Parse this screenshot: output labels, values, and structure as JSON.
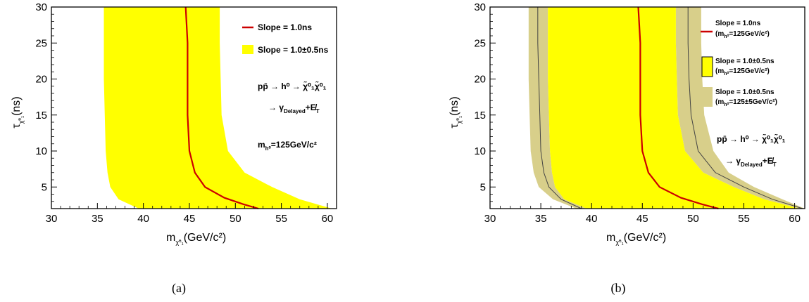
{
  "chart_data": [
    {
      "type": "area",
      "panel": "(a)",
      "xlim": [
        30,
        61
      ],
      "ylim": [
        2,
        30
      ],
      "xticks": [
        30,
        35,
        40,
        45,
        50,
        55,
        60
      ],
      "yticks": [
        5,
        10,
        15,
        20,
        25,
        30
      ],
      "ylabel_main": "τ",
      "ylabel_sub": "χ̃⁰₁",
      "ylabel_tail": "(ns)",
      "xlabel_main": "m",
      "xlabel_sub": "χ̃⁰₁",
      "xlabel_tail": "(GeV/c²)",
      "series": [
        {
          "name": "Slope = 1.0ns",
          "kind": "line",
          "color": "#cc0000",
          "x": [
            44.6,
            44.8,
            44.8,
            44.8,
            45.0,
            45.6,
            46.7,
            48.8,
            50.9,
            52.5
          ],
          "y": [
            30,
            25,
            20,
            15,
            10,
            7,
            5,
            3.5,
            2.6,
            2.0
          ]
        },
        {
          "name": "Slope = 1.0±0.5ns",
          "kind": "band",
          "color": "#ffff00",
          "x_low": [
            35.7,
            35.7,
            35.7,
            35.8,
            35.9,
            36.1,
            36.4,
            37.3,
            39.5
          ],
          "x_high": [
            48.3,
            48.3,
            48.4,
            48.5,
            49.2,
            51.0,
            54.0,
            57.0,
            60.5
          ],
          "y": [
            30,
            25,
            20,
            15,
            10,
            7,
            5,
            3.3,
            2.0
          ]
        }
      ],
      "legend_position": "top-right",
      "annotations": [
        {
          "text": "pp̄ → h⁰ → χ̃⁰₁χ̃⁰₁"
        },
        {
          "text": "→ γDelayed + E̸T"
        },
        {
          "text": "mh⁰=125GeV/c²"
        }
      ]
    },
    {
      "type": "area",
      "panel": "(b)",
      "xlim": [
        30,
        61
      ],
      "ylim": [
        2,
        30
      ],
      "xticks": [
        30,
        35,
        40,
        45,
        50,
        55,
        60
      ],
      "yticks": [
        5,
        10,
        15,
        20,
        25,
        30
      ],
      "series": [
        {
          "name": "Slope = 1.0ns (mh⁰=125GeV/c²)",
          "kind": "line",
          "color": "#cc0000",
          "x": [
            44.6,
            44.8,
            44.8,
            44.8,
            45.0,
            45.6,
            46.7,
            48.8,
            50.9,
            52.5
          ],
          "y": [
            30,
            25,
            20,
            15,
            10,
            7,
            5,
            3.5,
            2.6,
            2.0
          ]
        },
        {
          "name": "Slope = 1.0±0.5ns (mh⁰=125GeV/c²)",
          "kind": "band",
          "color": "#ffff00",
          "x_low": [
            35.7,
            35.7,
            35.7,
            35.8,
            35.9,
            36.1,
            36.4,
            37.3,
            39.5
          ],
          "x_high": [
            48.3,
            48.3,
            48.4,
            48.5,
            49.2,
            51.0,
            54.0,
            57.0,
            60.5
          ],
          "y": [
            30,
            25,
            20,
            15,
            10,
            7,
            5,
            3.3,
            2.0
          ]
        },
        {
          "name": "Slope = 1.0±0.5ns (mh⁰=125±5GeV/c²)",
          "kind": "band",
          "color": "#d8cf8a",
          "left_outer": [
            33.8,
            33.8,
            33.8,
            33.9,
            34.0,
            34.3,
            34.8,
            36.2,
            38.5
          ],
          "left_inner": [
            35.7,
            35.7,
            35.7,
            35.8,
            35.9,
            36.1,
            36.4,
            37.3,
            39.5
          ],
          "right_inner": [
            48.3,
            48.3,
            48.4,
            48.5,
            49.2,
            51.0,
            54.0,
            57.0,
            60.5
          ],
          "right_outer": [
            50.8,
            50.8,
            50.9,
            51.1,
            52.0,
            53.5,
            56.0,
            58.8,
            61.0
          ],
          "y": [
            30,
            25,
            20,
            15,
            10,
            7,
            5,
            3.3,
            2.0
          ]
        },
        {
          "kind": "line",
          "color": "#444444",
          "x": [
            34.7,
            34.7,
            34.8,
            34.9,
            35.0,
            35.3,
            35.8,
            37.0,
            39.0
          ],
          "y": [
            30,
            25,
            20,
            15,
            10,
            7,
            5,
            3.3,
            2.0
          ]
        },
        {
          "kind": "line",
          "color": "#444444",
          "x": [
            49.5,
            49.5,
            49.6,
            49.8,
            50.5,
            52.2,
            55.0,
            57.8,
            60.8
          ],
          "y": [
            30,
            25,
            20,
            15,
            10,
            7,
            5,
            3.3,
            2.0
          ]
        }
      ],
      "legend_position": "top-right",
      "annotations": [
        {
          "text": "pp̄ → h⁰ → χ̃⁰₁χ̃⁰₁"
        },
        {
          "text": "→ γDelayed + E̸T"
        }
      ]
    }
  ],
  "labels": {
    "caption_a": "(a)",
    "caption_b": "(b)",
    "leg_a1": "Slope = 1.0ns",
    "leg_a2": "Slope = 1.0±0.5ns",
    "leg_b1": "Slope = 1.0ns",
    "leg_b1s": "(m",
    "leg_b2": "Slope = 1.0±0.5ns",
    "leg_b3": "Slope = 1.0±0.5ns",
    "ann_process": "pp̄ → h⁰ → χ̃⁰₁χ̃⁰₁",
    "ann_decay": "→ γ",
    "ann_decay_sub": "Delayed",
    "ann_decay_tail": "+E̸",
    "ann_decay_T": "T",
    "ann_mass": "m",
    "ann_mass_sub": "h⁰",
    "ann_mass_tail": "=125GeV/c²",
    "leg_b1_mass": "=125GeV/c²)",
    "leg_b2_mass": "=125GeV/c²)",
    "leg_b3_mass": "=125±5GeV/c²)",
    "leg_sub_h": "h⁰",
    "ylab_tau": "τ",
    "ylab_sub": "χ̃⁰₁",
    "ylab_tail": "(ns)",
    "xlab_m": "m",
    "xlab_sub": "χ̃⁰₁",
    "xlab_tail": "(GeV/c²)"
  },
  "colors": {
    "band_yellow": "#ffff00",
    "band_olive": "#d8cf8a",
    "line_red": "#cc0000",
    "line_dark": "#444444"
  }
}
